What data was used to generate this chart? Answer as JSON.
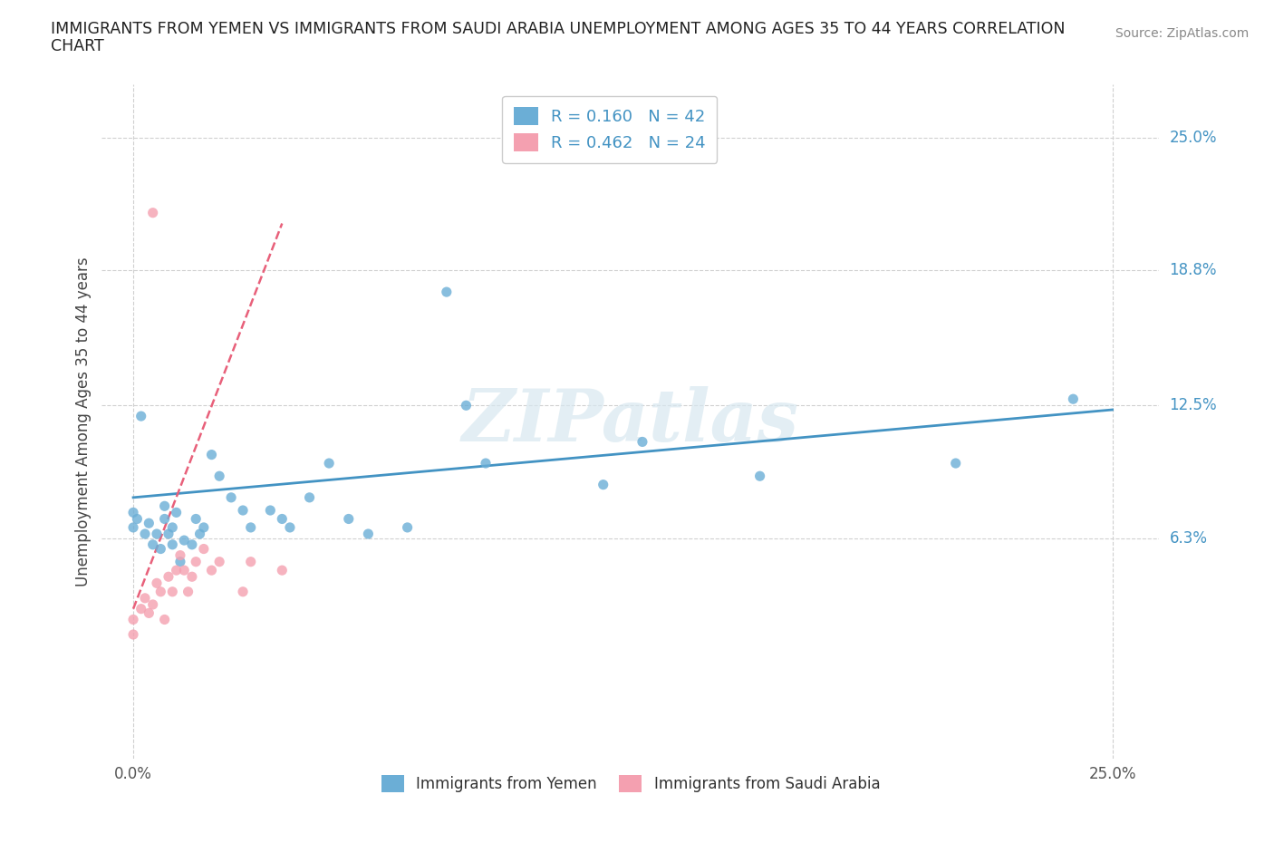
{
  "title_line1": "IMMIGRANTS FROM YEMEN VS IMMIGRANTS FROM SAUDI ARABIA UNEMPLOYMENT AMONG AGES 35 TO 44 YEARS CORRELATION",
  "title_line2": "CHART",
  "source_text": "Source: ZipAtlas.com",
  "ylabel": "Unemployment Among Ages 35 to 44 years",
  "ytick_labels": [
    "25.0%",
    "18.8%",
    "12.5%",
    "6.3%"
  ],
  "ytick_values": [
    0.25,
    0.188,
    0.125,
    0.063
  ],
  "xtick_values": [
    0.0,
    0.25
  ],
  "xtick_labels": [
    "0.0%",
    "25.0%"
  ],
  "xlim": [
    -0.008,
    0.262
  ],
  "ylim": [
    -0.04,
    0.275
  ],
  "watermark": "ZIPatlas",
  "R_yemen": 0.16,
  "N_yemen": 42,
  "R_saudi": 0.462,
  "N_saudi": 24,
  "legend_labels": [
    "Immigrants from Yemen",
    "Immigrants from Saudi Arabia"
  ],
  "color_yemen": "#6baed6",
  "color_saudi": "#f4a0b0",
  "trendline_yemen_color": "#4393c3",
  "trendline_saudi_color": "#e8607a",
  "grid_color": "#d0d0d0",
  "yemen_x": [
    0.0,
    0.0,
    0.001,
    0.002,
    0.003,
    0.004,
    0.005,
    0.006,
    0.007,
    0.008,
    0.008,
    0.009,
    0.01,
    0.01,
    0.011,
    0.012,
    0.013,
    0.015,
    0.016,
    0.017,
    0.018,
    0.02,
    0.022,
    0.025,
    0.028,
    0.03,
    0.035,
    0.038,
    0.04,
    0.045,
    0.05,
    0.055,
    0.06,
    0.07,
    0.08,
    0.085,
    0.09,
    0.12,
    0.13,
    0.16,
    0.21,
    0.24
  ],
  "yemen_y": [
    0.075,
    0.068,
    0.072,
    0.12,
    0.065,
    0.07,
    0.06,
    0.065,
    0.058,
    0.072,
    0.078,
    0.065,
    0.06,
    0.068,
    0.075,
    0.052,
    0.062,
    0.06,
    0.072,
    0.065,
    0.068,
    0.102,
    0.092,
    0.082,
    0.076,
    0.068,
    0.076,
    0.072,
    0.068,
    0.082,
    0.098,
    0.072,
    0.065,
    0.068,
    0.178,
    0.125,
    0.098,
    0.088,
    0.108,
    0.092,
    0.098,
    0.128
  ],
  "saudi_x": [
    0.005,
    0.0,
    0.0,
    0.002,
    0.003,
    0.004,
    0.005,
    0.006,
    0.007,
    0.008,
    0.009,
    0.01,
    0.011,
    0.012,
    0.013,
    0.014,
    0.015,
    0.016,
    0.018,
    0.02,
    0.022,
    0.028,
    0.03,
    0.038
  ],
  "saudi_y": [
    0.215,
    0.025,
    0.018,
    0.03,
    0.035,
    0.028,
    0.032,
    0.042,
    0.038,
    0.025,
    0.045,
    0.038,
    0.048,
    0.055,
    0.048,
    0.038,
    0.045,
    0.052,
    0.058,
    0.048,
    0.052,
    0.038,
    0.052,
    0.048
  ],
  "trendline_saudi_x0": 0.0,
  "trendline_saudi_y0": 0.03,
  "trendline_saudi_x1": 0.038,
  "trendline_saudi_y1": 0.21,
  "trendline_yemen_x0": 0.0,
  "trendline_yemen_y0": 0.082,
  "trendline_yemen_x1": 0.25,
  "trendline_yemen_y1": 0.123
}
